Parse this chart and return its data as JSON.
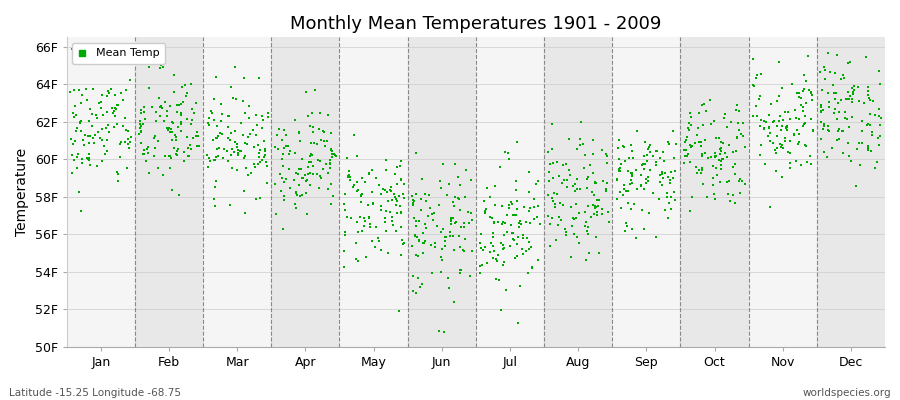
{
  "title": "Monthly Mean Temperatures 1901 - 2009",
  "ylabel": "Temperature",
  "xlabel_labels": [
    "Jan",
    "Feb",
    "Mar",
    "Apr",
    "May",
    "Jun",
    "Jul",
    "Aug",
    "Sep",
    "Oct",
    "Nov",
    "Dec"
  ],
  "ylim": [
    50,
    66.5
  ],
  "yticks": [
    50,
    52,
    54,
    56,
    58,
    60,
    62,
    64,
    66
  ],
  "ytick_labels": [
    "50F",
    "52F",
    "54F",
    "56F",
    "58F",
    "60F",
    "62F",
    "64F",
    "66F"
  ],
  "dot_color": "#00aa00",
  "background_color": "#ffffff",
  "band_color_even": "#e8e8e8",
  "band_color_odd": "#f5f5f5",
  "footer_left": "Latitude -15.25 Longitude -68.75",
  "footer_right": "worldspecies.org",
  "legend_label": "Mean Temp",
  "n_years": 109,
  "monthly_means": [
    61.5,
    61.5,
    61.0,
    60.0,
    57.5,
    56.0,
    56.5,
    57.8,
    59.0,
    60.5,
    62.0,
    62.5
  ],
  "monthly_stds": [
    1.6,
    1.6,
    1.4,
    1.4,
    1.6,
    1.8,
    1.8,
    1.6,
    1.4,
    1.5,
    1.6,
    1.5
  ]
}
